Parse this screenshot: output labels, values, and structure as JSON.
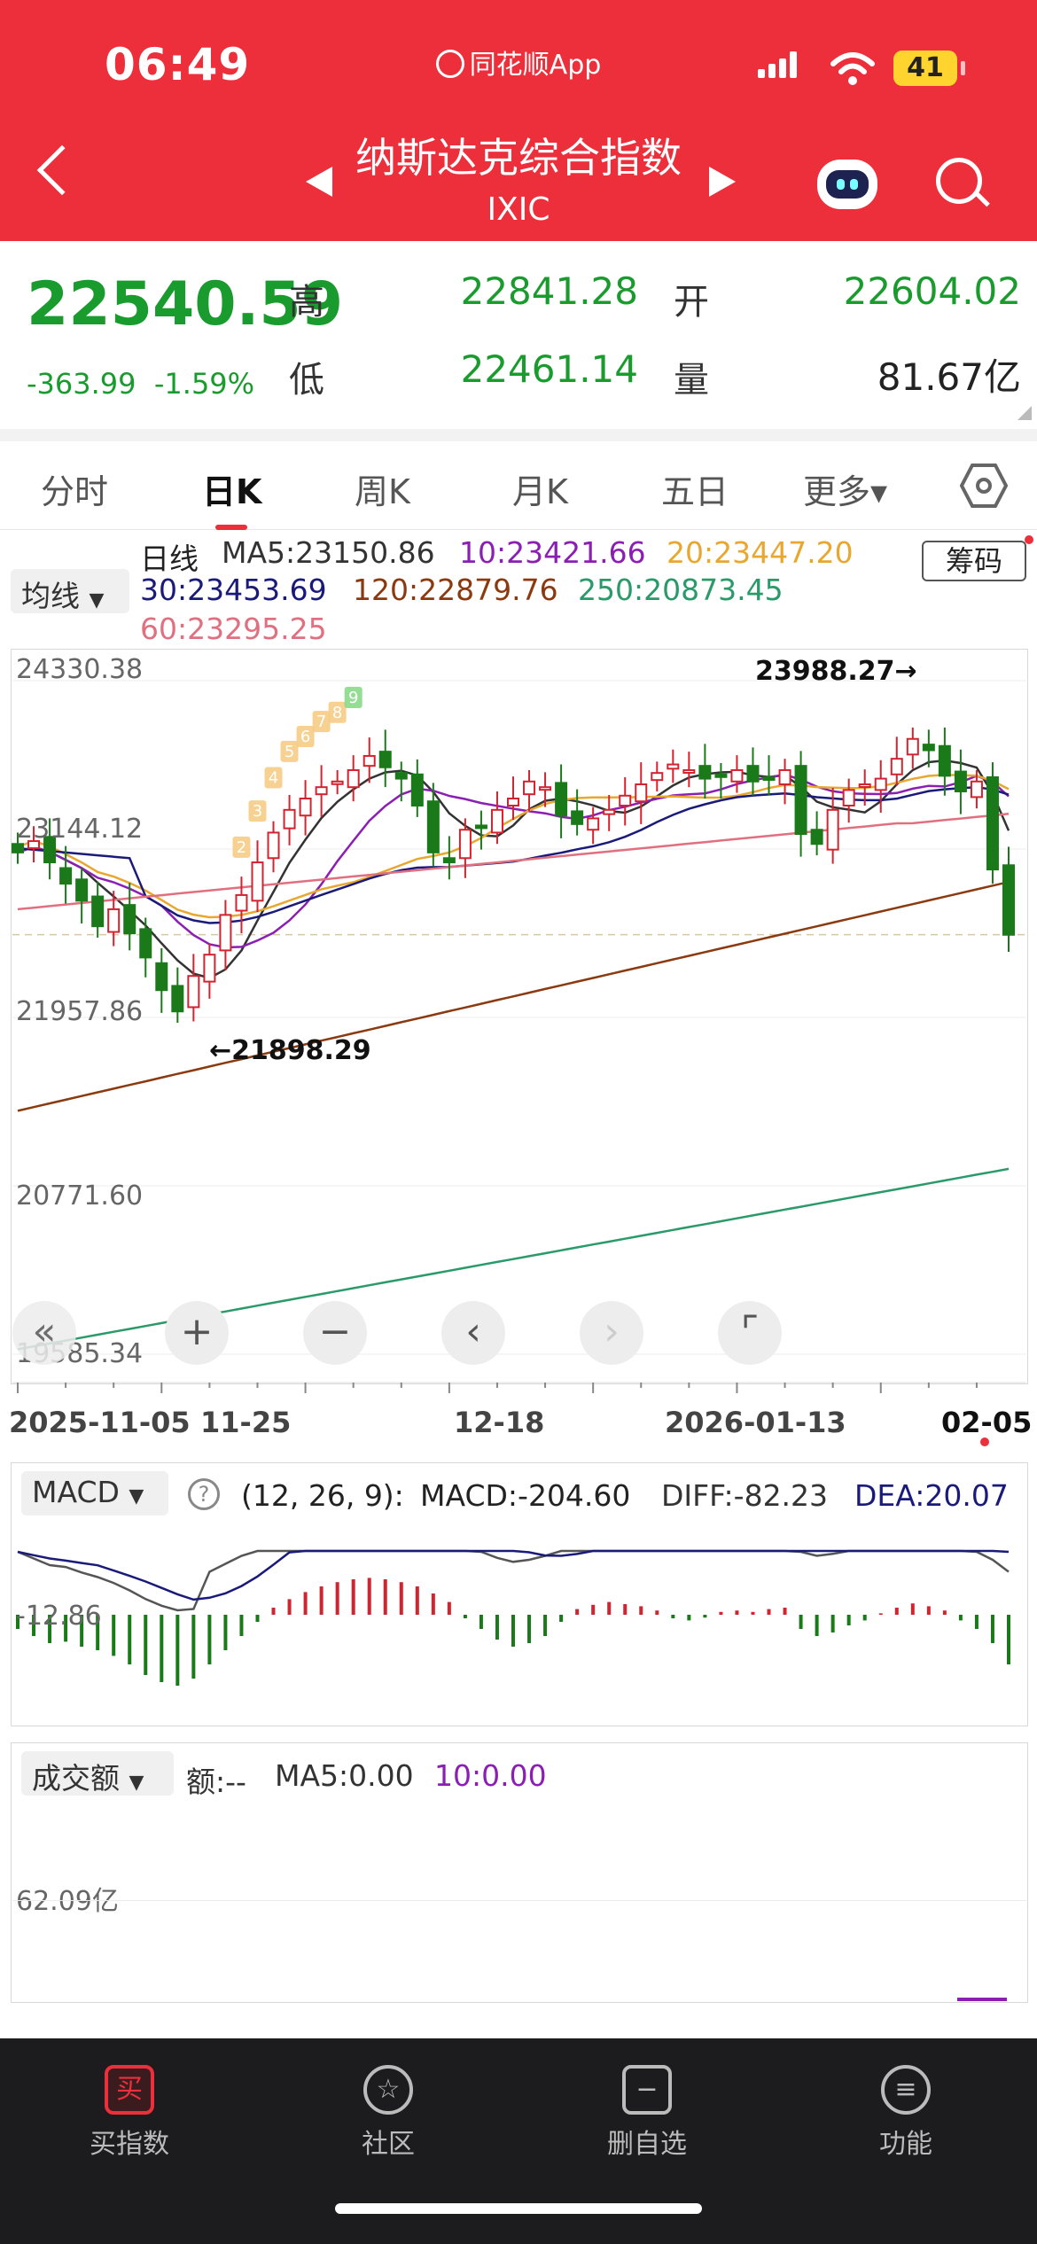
{
  "status_bar": {
    "time": "06:49",
    "app_name": "同花顺App",
    "battery": "41"
  },
  "header": {
    "title": "纳斯达克综合指数",
    "subtitle": "IXIC",
    "icons": [
      "back-icon",
      "prev-icon",
      "next-icon",
      "robot-icon",
      "search-icon"
    ]
  },
  "quote": {
    "price": "22540.59",
    "change": "-363.99",
    "change_pct": "-1.59%",
    "high_label": "高",
    "high": "22841.28",
    "open_label": "开",
    "open": "22604.02",
    "low_label": "低",
    "low": "22461.14",
    "volume_label": "量",
    "volume": "81.67亿"
  },
  "tabs": [
    {
      "label": "分时"
    },
    {
      "label": "日K"
    },
    {
      "label": "周K"
    },
    {
      "label": "月K"
    },
    {
      "label": "五日"
    },
    {
      "label": "更多▾"
    }
  ],
  "ma_legend": {
    "selector": "均线",
    "period": "日线",
    "ma5": "MA5:23150.86",
    "ma10": "10:23421.66",
    "ma20": "20:23447.20",
    "ma30": "30:23453.69",
    "ma120": "120:22879.76",
    "ma250": "250:20873.45",
    "ma60": "60:23295.25",
    "chip_button": "筹码"
  },
  "colors": {
    "up": "#d2232f",
    "down": "#1a7a1a",
    "ma5": "#333333",
    "ma10": "#8b1fb4",
    "ma20": "#e8a830",
    "ma30": "#1a1a7a",
    "ma60": "#e07080",
    "ma120": "#8b3a10",
    "ma250": "#2a9a6a"
  },
  "chart_labels": {
    "y_ticks": [
      "24330.38",
      "23144.12",
      "21957.86",
      "20771.60",
      "19585.34"
    ],
    "x_ticks": [
      "2025-11-05",
      "11-25",
      "12-18",
      "2026-01-13",
      "02-05"
    ],
    "max_marker": "23988.27→",
    "min_marker": "←21898.29",
    "td_counts": [
      "2",
      "3",
      "4",
      "5",
      "6",
      "7",
      "8",
      "9"
    ]
  },
  "controls": [
    "«",
    "+",
    "−",
    "‹",
    "›",
    "⌜"
  ],
  "macd": {
    "selector": "MACD",
    "help": "?",
    "params": "(12, 26, 9):",
    "macd": "MACD:-204.60",
    "diff": "DIFF:-82.23",
    "dea": "DEA:20.07",
    "y_tick": "-12.86"
  },
  "volume_panel": {
    "selector": "成交额",
    "amount": "额:--",
    "ma5": "MA5:0.00",
    "ma10": "10:0.00",
    "y_tick": "62.09亿"
  },
  "bottom_nav": [
    {
      "label": "买指数",
      "icon": "买"
    },
    {
      "label": "社区",
      "icon": "☆"
    },
    {
      "label": "删自选",
      "icon": "−"
    },
    {
      "label": "功能",
      "icon": "≡"
    }
  ],
  "chart_data": {
    "type": "candlestick",
    "y_range": [
      19585.34,
      24330.38
    ],
    "series": [
      {
        "name": "MA5",
        "current": 23150.86
      },
      {
        "name": "10",
        "current": 23421.66
      },
      {
        "name": "20",
        "current": 23447.2
      },
      {
        "name": "30",
        "current": 23453.69
      },
      {
        "name": "60",
        "current": 23295.25
      },
      {
        "name": "120",
        "current": 22879.76
      },
      {
        "name": "250",
        "current": 20873.45
      }
    ],
    "high_marker": 23988.27,
    "low_marker": 21898.29,
    "last_close": 22540.59
  }
}
